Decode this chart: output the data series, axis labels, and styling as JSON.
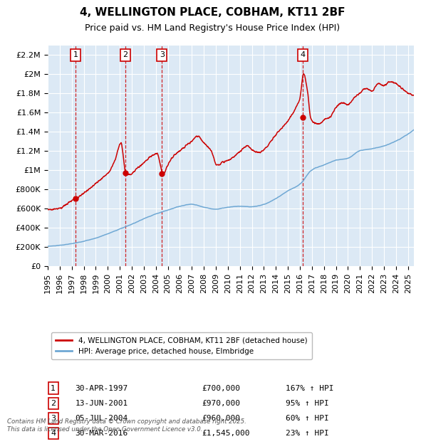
{
  "title_line1": "4, WELLINGTON PLACE, COBHAM, KT11 2BF",
  "title_line2": "Price paid vs. HM Land Registry's House Price Index (HPI)",
  "bg_color": "#dce9f5",
  "hpi_color": "#6fa8d4",
  "price_color": "#cc0000",
  "marker_color": "#cc0000",
  "dashed_color": "#cc0000",
  "ylim": [
    0,
    2300000
  ],
  "yticks": [
    0,
    200000,
    400000,
    600000,
    800000,
    1000000,
    1200000,
    1400000,
    1600000,
    1800000,
    2000000,
    2200000
  ],
  "legend_label_red": "4, WELLINGTON PLACE, COBHAM, KT11 2BF (detached house)",
  "legend_label_blue": "HPI: Average price, detached house, Elmbridge",
  "transactions": [
    {
      "num": 1,
      "date": "30-APR-1997",
      "price": 700000,
      "hpi_pct": "167% ↑ HPI",
      "year": 1997.33
    },
    {
      "num": 2,
      "date": "13-JUN-2001",
      "price": 970000,
      "hpi_pct": "95% ↑ HPI",
      "year": 2001.45
    },
    {
      "num": 3,
      "date": "05-JUL-2004",
      "price": 960000,
      "hpi_pct": "60% ↑ HPI",
      "year": 2004.51
    },
    {
      "num": 4,
      "date": "30-MAR-2016",
      "price": 1545000,
      "hpi_pct": "23% ↑ HPI",
      "year": 2016.25
    }
  ],
  "table_rows": [
    [
      "1",
      "30-APR-1997",
      "£700,000",
      "167% ↑ HPI"
    ],
    [
      "2",
      "13-JUN-2001",
      "£970,000",
      "95% ↑ HPI"
    ],
    [
      "3",
      "05-JUL-2004",
      "£960,000",
      "60% ↑ HPI"
    ],
    [
      "4",
      "30-MAR-2016",
      "£1,545,000",
      "23% ↑ HPI"
    ]
  ],
  "footnote": "Contains HM Land Registry data © Crown copyright and database right 2025.\nThis data is licensed under the Open Government Licence v3.0.",
  "xmin": 1995.0,
  "xmax": 2025.5
}
